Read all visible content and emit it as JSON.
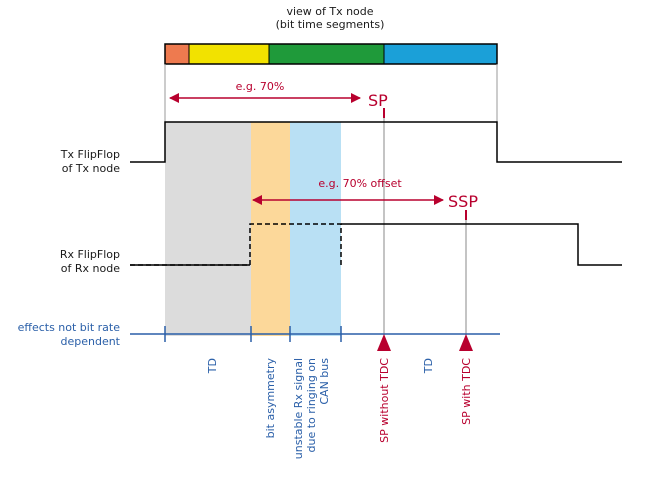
{
  "header": {
    "line1": "view of Tx node",
    "line2": "(bit time segments)"
  },
  "segment_colors": [
    "#ee7a4f",
    "#f2e200",
    "#1f9a3a",
    "#1ba0d8"
  ],
  "region_colors": {
    "td": "#dcdcdc",
    "asym": "#fcd89a",
    "ringing": "#b9e0f4"
  },
  "accent_color": "#b8002e",
  "axis_color": "#2a5fa8",
  "sp_arrow": {
    "label": "e.g. 70%",
    "marker": "SP"
  },
  "ssp_arrow": {
    "label": "e.g. 70% offset",
    "marker": "SSP"
  },
  "tx_signal": {
    "line1": "Tx FlipFlop",
    "line2": "of Tx node"
  },
  "rx_signal": {
    "line1": "Rx FlipFlop",
    "line2": "of Rx node"
  },
  "effects_label": {
    "line1": "effects not bit rate",
    "line2": "dependent"
  },
  "bottom_labels": {
    "td1": "TD",
    "bit_asym": "bit asymmetry",
    "unstable1": "unstable Rx signal",
    "unstable2": "due to ringing on",
    "unstable3": "CAN bus",
    "sp_without": "SP without TDC",
    "td2": "TD",
    "sp_with": "SP with TDC"
  }
}
